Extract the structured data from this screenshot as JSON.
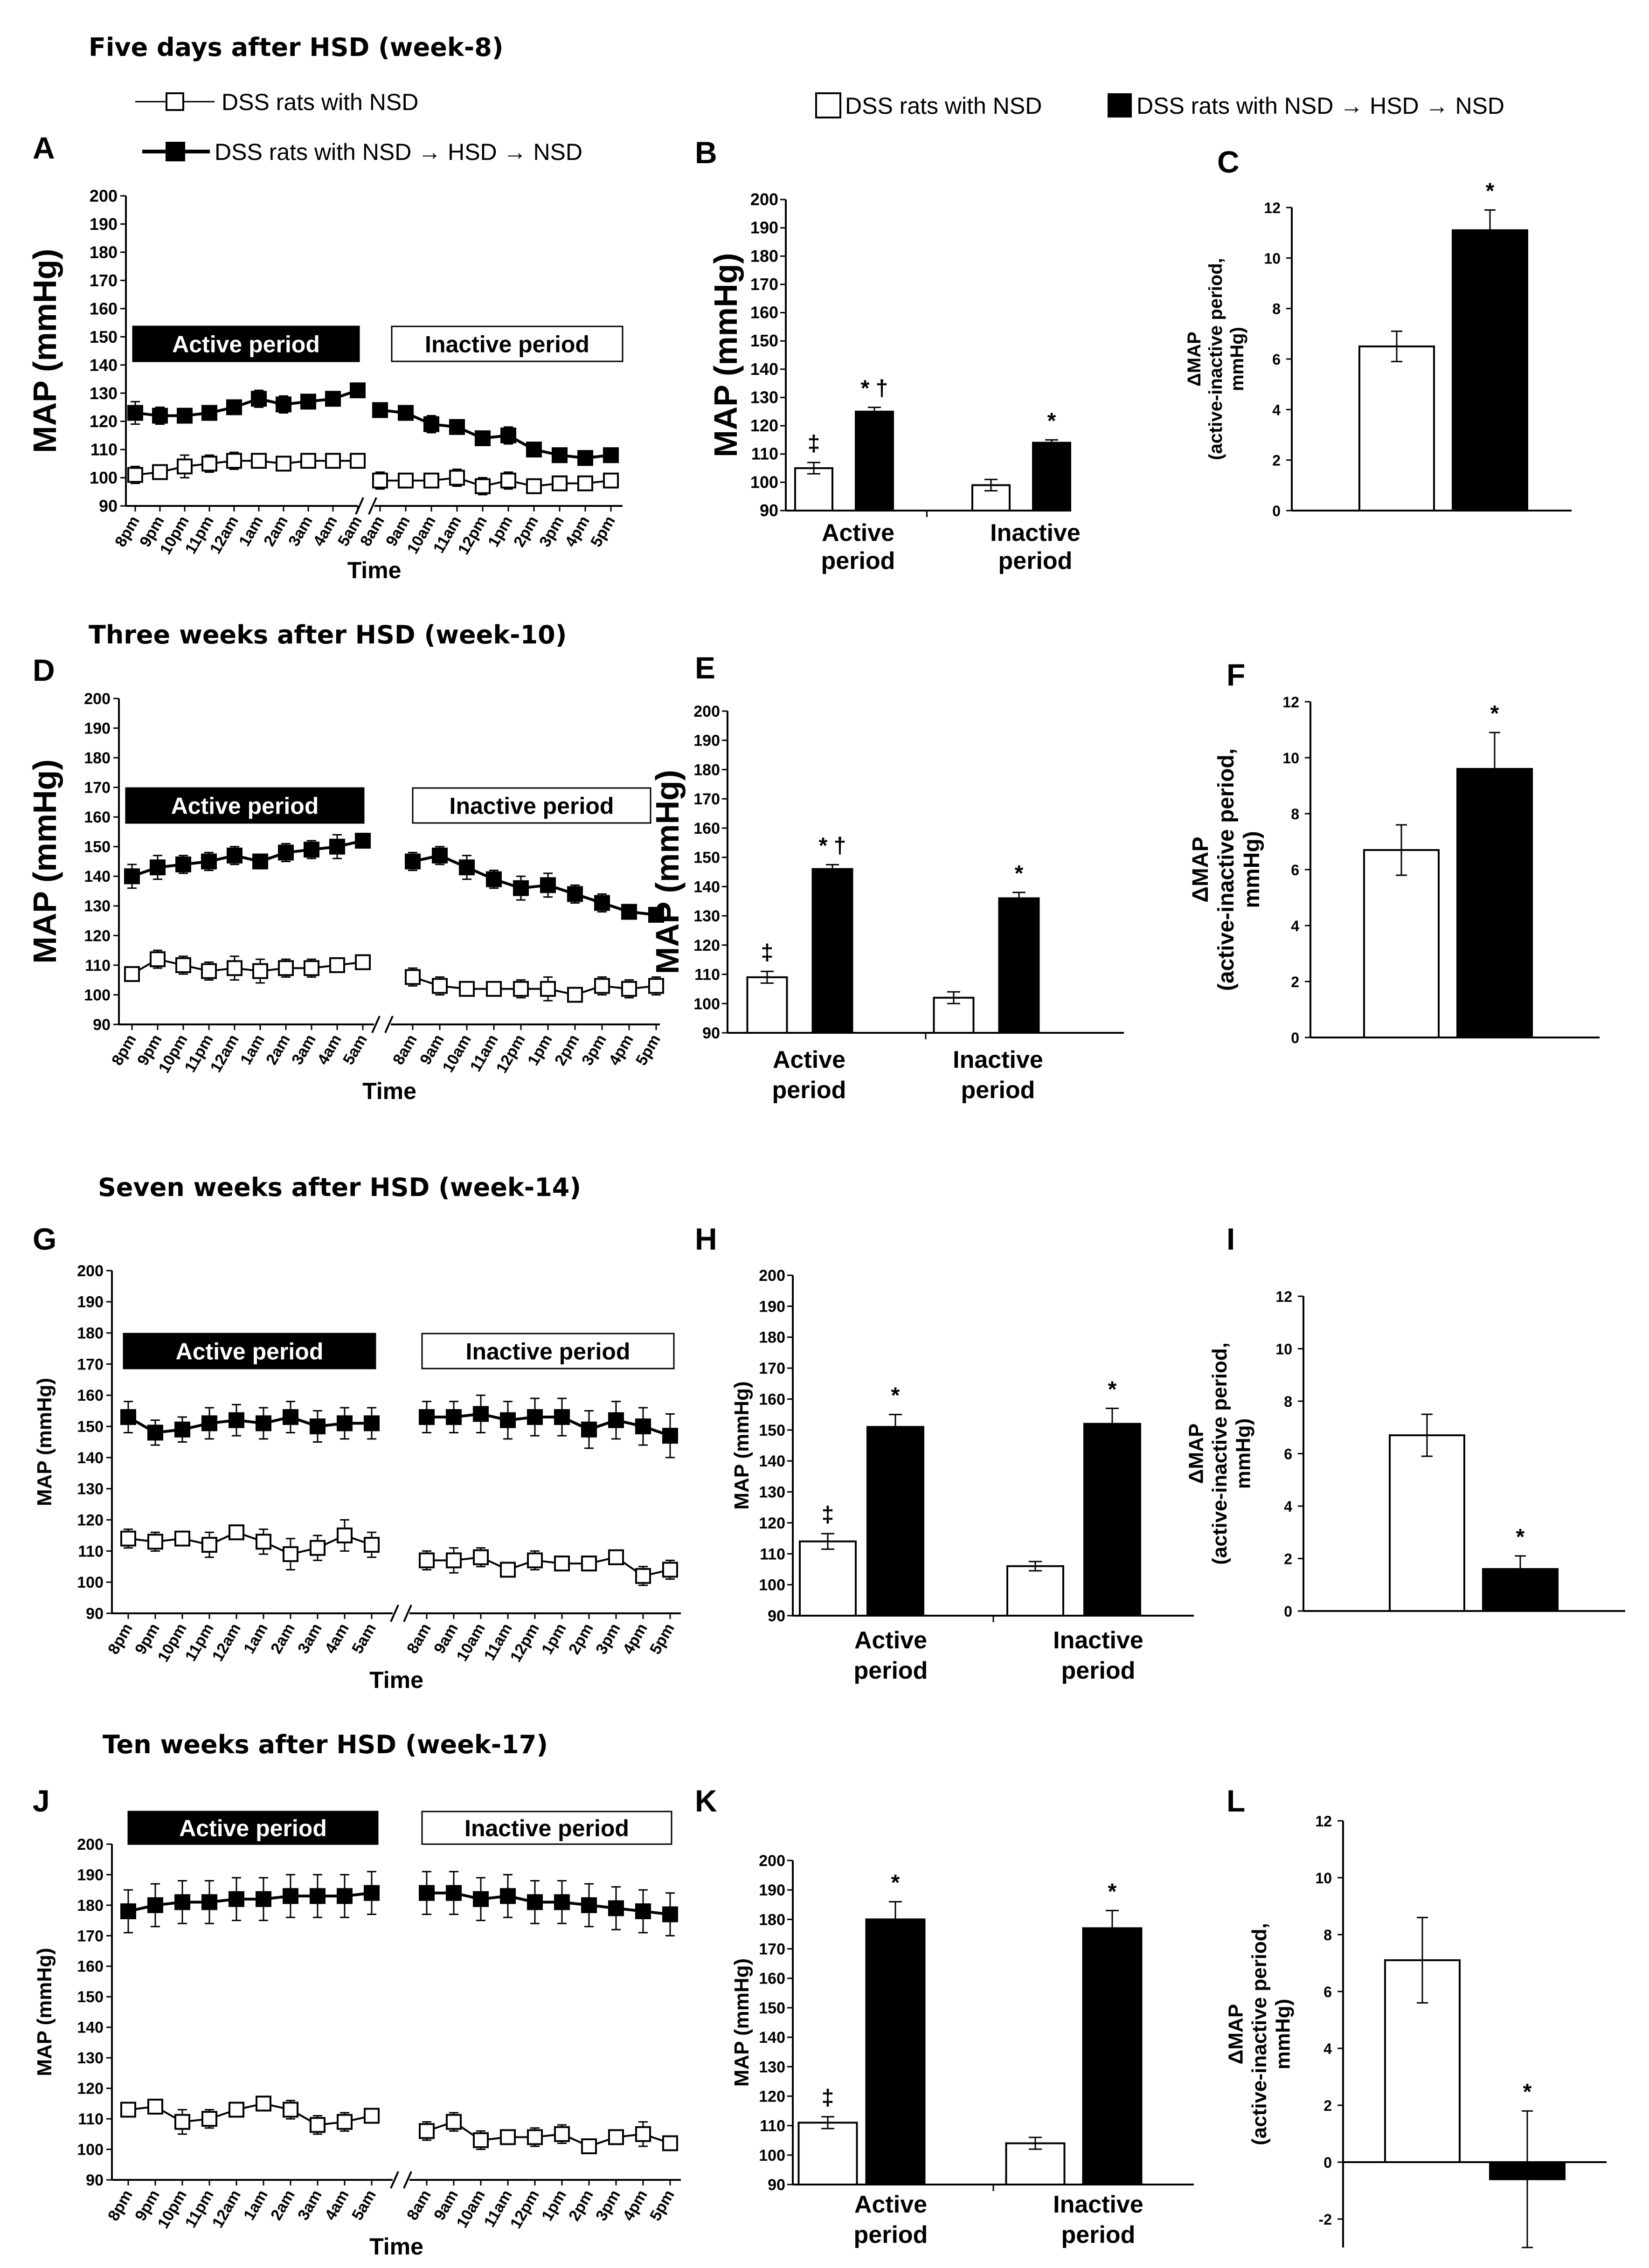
{
  "legend": {
    "open_label": "DSS rats with NSD",
    "filled_label": "DSS rats with NSD → HSD → NSD",
    "open_color": "#ffffff",
    "filled_color": "#000000"
  },
  "chart_data": [
    {
      "letter": "A",
      "section_title": "Five days after HSD (week-8)",
      "type": "line",
      "title": "",
      "xlabel": "Time",
      "ylabel": "MAP (mmHg)",
      "ylim": [
        90,
        200
      ],
      "yticks": [
        90,
        100,
        110,
        120,
        130,
        140,
        150,
        160,
        170,
        180,
        190,
        200
      ],
      "active_label": "Active period",
      "inactive_label": "Inactive period",
      "x_active": [
        "8pm",
        "9pm",
        "10pm",
        "11pm",
        "12am",
        "1am",
        "2am",
        "3am",
        "4am",
        "5am"
      ],
      "x_inactive": [
        "8am",
        "9am",
        "10am",
        "11am",
        "12pm",
        "1pm",
        "2pm",
        "3pm",
        "4pm",
        "5pm"
      ],
      "series": [
        {
          "name": "DSS rats with NSD",
          "marker": "open",
          "active": [
            101,
            102,
            104,
            105,
            106,
            106,
            105,
            106,
            106,
            106
          ],
          "active_err": [
            3,
            2,
            4,
            3,
            3,
            2,
            2,
            2,
            2,
            2
          ],
          "inactive": [
            99,
            99,
            99,
            100,
            97,
            99,
            97,
            98,
            98,
            99
          ],
          "inactive_err": [
            3,
            2,
            2,
            3,
            3,
            3,
            2,
            2,
            2,
            2
          ]
        },
        {
          "name": "DSS rats with NSD → HSD → NSD",
          "marker": "filled",
          "active": [
            123,
            122,
            122,
            123,
            125,
            128,
            126,
            127,
            128,
            131
          ],
          "active_err": [
            4,
            3,
            2,
            2,
            2,
            3,
            3,
            2,
            2,
            1
          ],
          "inactive": [
            124,
            123,
            119,
            118,
            114,
            115,
            110,
            108,
            107,
            108
          ],
          "inactive_err": [
            2,
            2,
            3,
            2,
            2,
            3,
            2,
            2,
            2,
            2
          ]
        }
      ]
    },
    {
      "letter": "B",
      "type": "bar",
      "ylabel": "MAP (mmHg)",
      "ylim": [
        90,
        200
      ],
      "yticks": [
        90,
        100,
        110,
        120,
        130,
        140,
        150,
        160,
        170,
        180,
        190,
        200
      ],
      "categories": [
        "Active period",
        "Inactive period"
      ],
      "series": [
        {
          "name": "DSS rats with NSD",
          "values": [
            105,
            99
          ],
          "errors": [
            2,
            2
          ],
          "marks": [
            "‡",
            ""
          ]
        },
        {
          "name": "DSS rats with NSD → HSD → NSD",
          "values": [
            125,
            114
          ],
          "errors": [
            1.5,
            1
          ],
          "marks": [
            "* †",
            "*"
          ]
        }
      ]
    },
    {
      "letter": "C",
      "type": "bar",
      "ylabel": "ΔMAP (active-inactive period, mmHg)",
      "ylim": [
        0,
        12
      ],
      "yticks": [
        0,
        2,
        4,
        6,
        8,
        10,
        12
      ],
      "categories": [
        "DSS rats with NSD",
        "DSS rats with NSD → HSD → NSD"
      ],
      "values": [
        6.5,
        11.1
      ],
      "errors": [
        0.6,
        0.8
      ],
      "marks": [
        "",
        "*"
      ]
    },
    {
      "letter": "D",
      "section_title": "Three weeks after HSD (week-10)",
      "type": "line",
      "xlabel": "Time",
      "ylabel": "MAP (mmHg)",
      "ylim": [
        90,
        200
      ],
      "yticks": [
        90,
        100,
        110,
        120,
        130,
        140,
        150,
        160,
        170,
        180,
        190,
        200
      ],
      "active_label": "Active period",
      "inactive_label": "Inactive period",
      "x_active": [
        "8pm",
        "9pm",
        "10pm",
        "11pm",
        "12am",
        "1am",
        "2am",
        "3am",
        "4am",
        "5am"
      ],
      "x_inactive": [
        "8am",
        "9am",
        "10am",
        "11am",
        "12pm",
        "1pm",
        "2pm",
        "3pm",
        "4pm",
        "5pm"
      ],
      "series": [
        {
          "name": "DSS rats with NSD",
          "marker": "open",
          "active": [
            107,
            112,
            110,
            108,
            109,
            108,
            109,
            109,
            110,
            111
          ],
          "active_err": [
            2,
            3,
            3,
            3,
            4,
            4,
            3,
            3,
            2,
            2
          ],
          "inactive": [
            106,
            103,
            102,
            102,
            102,
            102,
            100,
            103,
            102,
            103
          ],
          "inactive_err": [
            3,
            3,
            2,
            2,
            3,
            4,
            2,
            3,
            3,
            3
          ]
        },
        {
          "name": "DSS rats with NSD → HSD → NSD",
          "marker": "filled",
          "active": [
            140,
            143,
            144,
            145,
            147,
            145,
            148,
            149,
            150,
            152
          ],
          "active_err": [
            4,
            4,
            3,
            3,
            3,
            2,
            3,
            3,
            4,
            2
          ],
          "inactive": [
            145,
            147,
            143,
            139,
            136,
            137,
            134,
            131,
            128,
            127
          ],
          "inactive_err": [
            3,
            3,
            4,
            3,
            4,
            4,
            3,
            3,
            2,
            2
          ]
        }
      ]
    },
    {
      "letter": "E",
      "type": "bar",
      "ylabel": "MAP (mmHg)",
      "ylim": [
        90,
        200
      ],
      "yticks": [
        90,
        100,
        110,
        120,
        130,
        140,
        150,
        160,
        170,
        180,
        190,
        200
      ],
      "categories": [
        "Active period",
        "Inactive period"
      ],
      "series": [
        {
          "name": "DSS rats with NSD",
          "values": [
            109,
            102
          ],
          "errors": [
            2,
            2
          ],
          "marks": [
            "‡",
            ""
          ]
        },
        {
          "name": "DSS rats with NSD → HSD → NSD",
          "values": [
            146,
            136
          ],
          "errors": [
            1.5,
            2
          ],
          "marks": [
            "* †",
            "*"
          ]
        }
      ]
    },
    {
      "letter": "F",
      "type": "bar",
      "ylabel": "ΔMAP (active-inactive period, mmHg)",
      "ylim": [
        0,
        12
      ],
      "yticks": [
        0,
        2,
        4,
        6,
        8,
        10,
        12
      ],
      "categories": [
        "DSS rats with NSD",
        "DSS rats with NSD → HSD → NSD"
      ],
      "values": [
        6.7,
        9.6
      ],
      "errors": [
        0.9,
        1.3
      ],
      "marks": [
        "",
        "*"
      ]
    },
    {
      "letter": "G",
      "section_title": "Seven weeks after HSD (week-14)",
      "type": "line",
      "xlabel": "Time",
      "ylabel": "MAP (mmHg)",
      "ylim": [
        90,
        200
      ],
      "yticks": [
        90,
        100,
        110,
        120,
        130,
        140,
        150,
        160,
        170,
        180,
        190,
        200
      ],
      "active_label": "Active period",
      "inactive_label": "Inactive period",
      "x_active": [
        "8pm",
        "9pm",
        "10pm",
        "11pm",
        "12am",
        "1am",
        "2am",
        "3am",
        "4am",
        "5am"
      ],
      "x_inactive": [
        "8am",
        "9am",
        "10am",
        "11am",
        "12pm",
        "1pm",
        "2pm",
        "3pm",
        "4pm",
        "5pm"
      ],
      "series": [
        {
          "name": "DSS rats with NSD",
          "marker": "open",
          "active": [
            114,
            113,
            114,
            112,
            116,
            113,
            109,
            111,
            115,
            112
          ],
          "active_err": [
            3,
            3,
            2,
            4,
            2,
            4,
            5,
            4,
            5,
            4
          ],
          "inactive": [
            107,
            107,
            108,
            104,
            107,
            106,
            106,
            108,
            102,
            104
          ],
          "inactive_err": [
            3,
            4,
            3,
            2,
            3,
            2,
            2,
            2,
            3,
            3
          ]
        },
        {
          "name": "DSS rats with NSD → HSD → NSD",
          "marker": "filled",
          "active": [
            153,
            148,
            149,
            151,
            152,
            151,
            153,
            150,
            151,
            151
          ],
          "active_err": [
            5,
            4,
            4,
            5,
            5,
            5,
            5,
            5,
            5,
            5
          ],
          "inactive": [
            153,
            153,
            154,
            152,
            153,
            153,
            149,
            152,
            150,
            147
          ],
          "inactive_err": [
            5,
            5,
            6,
            6,
            6,
            6,
            6,
            6,
            6,
            7
          ]
        }
      ]
    },
    {
      "letter": "H",
      "type": "bar",
      "ylabel": "MAP (mmHg)",
      "ylim": [
        90,
        200
      ],
      "yticks": [
        90,
        100,
        110,
        120,
        130,
        140,
        150,
        160,
        170,
        180,
        190,
        200
      ],
      "categories": [
        "Active period",
        "Inactive period"
      ],
      "series": [
        {
          "name": "DSS rats with NSD",
          "values": [
            114,
            106
          ],
          "errors": [
            2.5,
            1.5
          ],
          "marks": [
            "‡",
            ""
          ]
        },
        {
          "name": "DSS rats with NSD → HSD → NSD",
          "values": [
            151,
            152
          ],
          "errors": [
            4,
            5
          ],
          "marks": [
            "*",
            "*"
          ]
        }
      ]
    },
    {
      "letter": "I",
      "type": "bar",
      "ylabel": "ΔMAP (active-inactive period, mmHg)",
      "ylim": [
        0,
        12
      ],
      "yticks": [
        0,
        2,
        4,
        6,
        8,
        10,
        12
      ],
      "categories": [
        "DSS rats with NSD",
        "DSS rats with NSD → HSD → NSD"
      ],
      "values": [
        6.7,
        1.6
      ],
      "errors": [
        0.8,
        0.5
      ],
      "marks": [
        "",
        "*"
      ]
    },
    {
      "letter": "J",
      "section_title": "Ten weeks after HSD (week-17)",
      "type": "line",
      "xlabel": "Time",
      "ylabel": "MAP (mmHg)",
      "ylim": [
        90,
        200
      ],
      "yticks": [
        90,
        100,
        110,
        120,
        130,
        140,
        150,
        160,
        170,
        180,
        190,
        200
      ],
      "active_label": "Active period",
      "inactive_label": "Inactive period",
      "x_active": [
        "8pm",
        "9pm",
        "10pm",
        "11pm",
        "12am",
        "1am",
        "2am",
        "3am",
        "4am",
        "5am"
      ],
      "x_inactive": [
        "8am",
        "9am",
        "10am",
        "11am",
        "12pm",
        "1pm",
        "2pm",
        "3pm",
        "4pm",
        "5pm"
      ],
      "series": [
        {
          "name": "DSS rats with NSD",
          "marker": "open",
          "active": [
            113,
            114,
            109,
            110,
            113,
            115,
            113,
            108,
            109,
            111
          ],
          "active_err": [
            2,
            2,
            4,
            3,
            2,
            2,
            3,
            3,
            3,
            2
          ],
          "inactive": [
            106,
            109,
            103,
            104,
            104,
            105,
            101,
            104,
            105,
            102
          ],
          "inactive_err": [
            3,
            3,
            3,
            2,
            3,
            3,
            2,
            2,
            4,
            2
          ]
        },
        {
          "name": "DSS rats with NSD → HSD → NSD",
          "marker": "filled",
          "active": [
            178,
            180,
            181,
            181,
            182,
            182,
            183,
            183,
            183,
            184
          ],
          "active_err": [
            7,
            7,
            7,
            7,
            7,
            7,
            7,
            7,
            7,
            7
          ],
          "inactive": [
            184,
            184,
            182,
            183,
            181,
            181,
            180,
            179,
            178,
            177
          ],
          "inactive_err": [
            7,
            7,
            7,
            7,
            7,
            7,
            7,
            7,
            7,
            7
          ]
        }
      ]
    },
    {
      "letter": "K",
      "type": "bar",
      "ylabel": "MAP (mmHg)",
      "ylim": [
        90,
        200
      ],
      "yticks": [
        90,
        100,
        110,
        120,
        130,
        140,
        150,
        160,
        170,
        180,
        190,
        200
      ],
      "categories": [
        "Active period",
        "Inactive period"
      ],
      "series": [
        {
          "name": "DSS rats with NSD",
          "values": [
            111,
            104
          ],
          "errors": [
            2,
            2
          ],
          "marks": [
            "‡",
            ""
          ]
        },
        {
          "name": "DSS rats with NSD → HSD → NSD",
          "values": [
            180,
            177
          ],
          "errors": [
            6,
            6
          ],
          "marks": [
            "*",
            "*"
          ]
        }
      ]
    },
    {
      "letter": "L",
      "type": "bar",
      "ylabel": "ΔMAP (active-inactive period, mmHg)",
      "ylim": [
        -3,
        12
      ],
      "yticks": [
        -2,
        0,
        2,
        4,
        6,
        8,
        10,
        12
      ],
      "categories": [
        "DSS rats with NSD",
        "DSS rats with NSD → HSD → NSD"
      ],
      "values": [
        7.1,
        -0.6
      ],
      "errors": [
        1.5,
        2.4
      ],
      "marks": [
        "",
        "*"
      ]
    }
  ]
}
